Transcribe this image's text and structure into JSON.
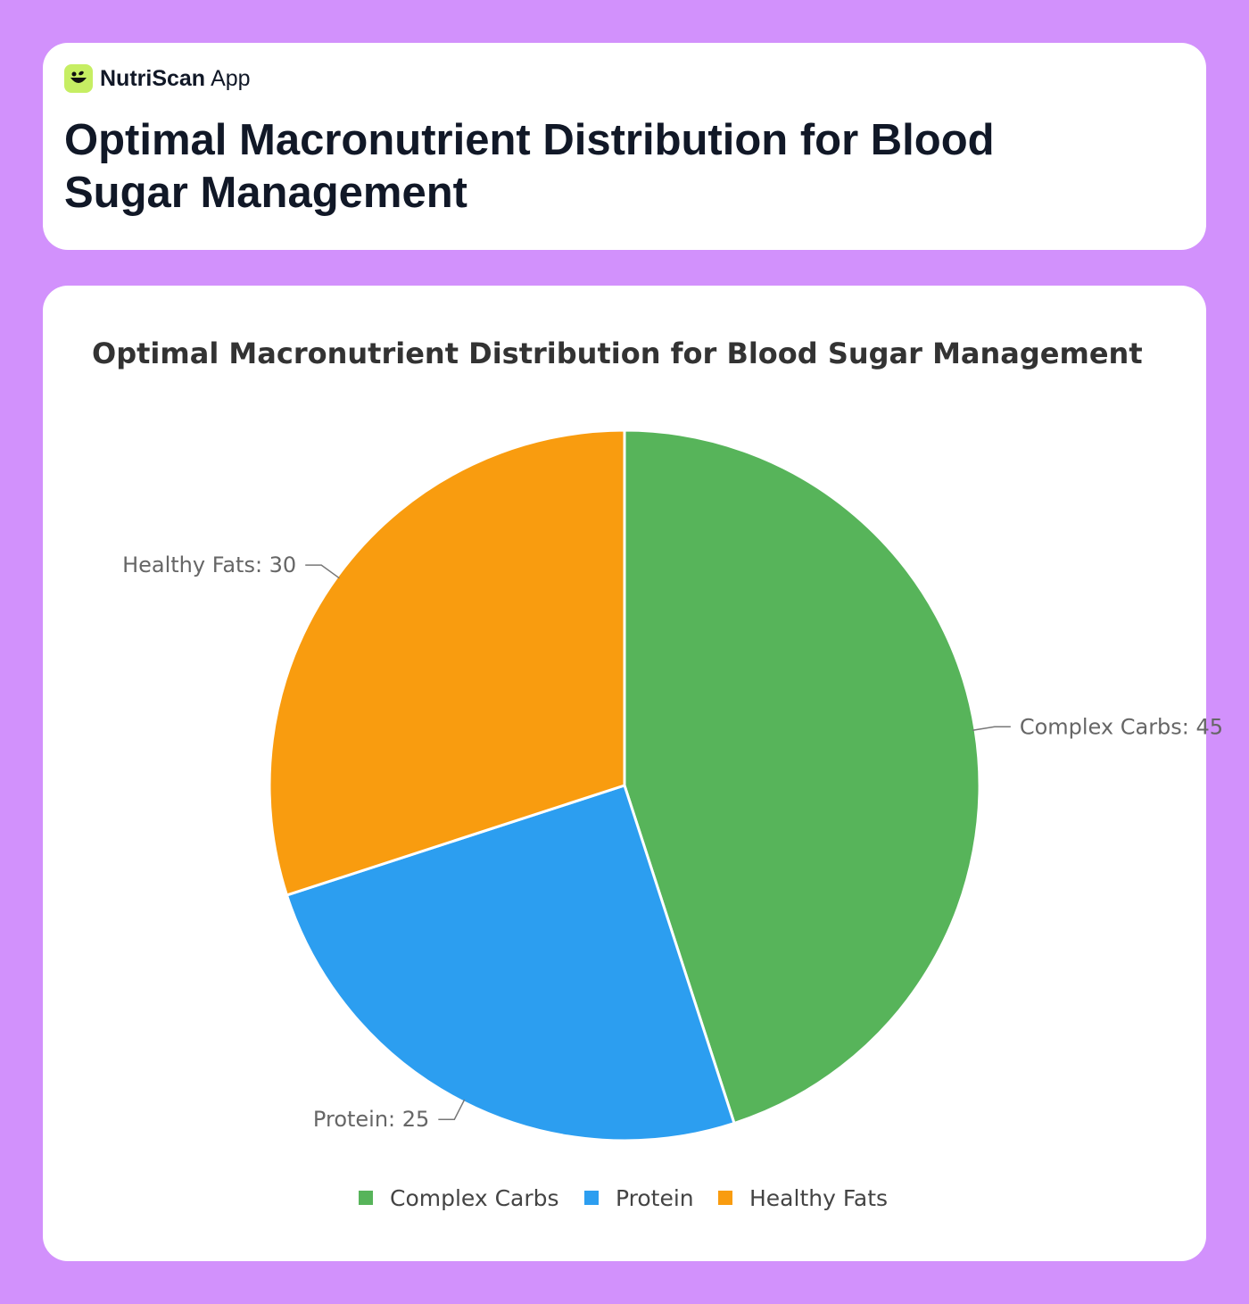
{
  "app": {
    "brand_bold": "NutriScan",
    "brand_light": "App",
    "logo_icon": "leaf-bowl-icon"
  },
  "header": {
    "title": "Optimal Macronutrient Distribution for Blood Sugar Management"
  },
  "chart_data": {
    "type": "pie",
    "title": "Optimal Macronutrient Distribution for Blood Sugar Management",
    "categories": [
      "Complex Carbs",
      "Protein",
      "Healthy Fats"
    ],
    "values": [
      45,
      25,
      30
    ],
    "colors": [
      "#57b45a",
      "#2c9ef0",
      "#f99c0f"
    ],
    "data_labels": [
      "Complex Carbs: 45",
      "Protein: 25",
      "Healthy Fats: 30"
    ],
    "legend": "bottom"
  }
}
